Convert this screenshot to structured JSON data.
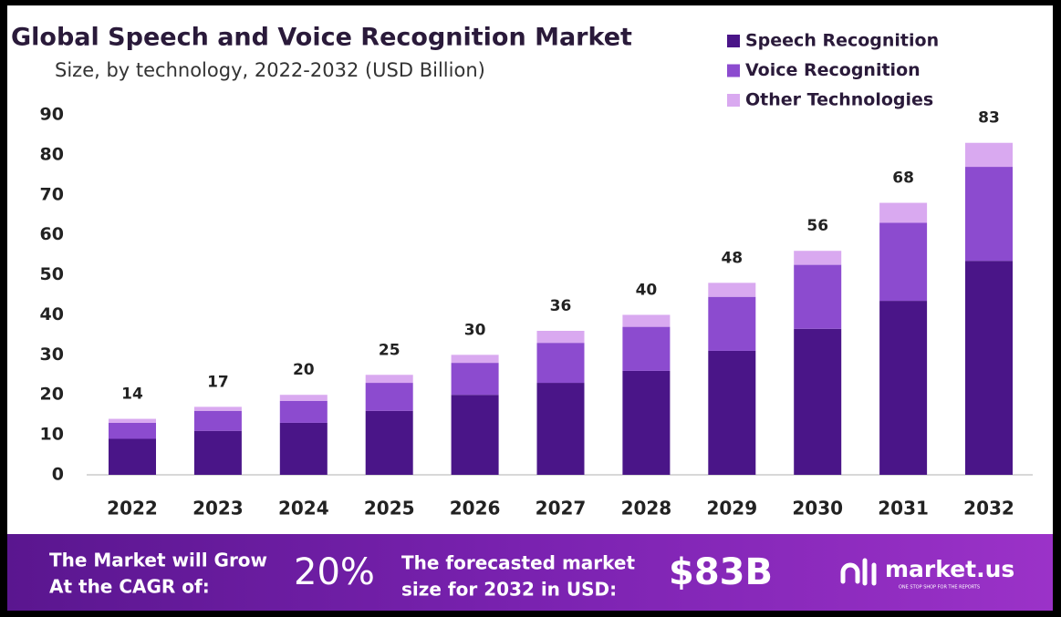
{
  "chart_data": {
    "type": "stacked_bar",
    "title": "Global Speech and Voice Recognition Market",
    "subtitle": "Size, by technology, 2022-2032 (USD Billion)",
    "categories": [
      "2022",
      "2023",
      "2024",
      "2025",
      "2026",
      "2027",
      "2028",
      "2029",
      "2030",
      "2031",
      "2032"
    ],
    "series": [
      {
        "name": "Speech Recognition",
        "color": "#4a1588",
        "values": [
          9,
          11,
          13,
          16,
          20,
          23,
          26,
          31,
          36.5,
          43.5,
          53.5
        ]
      },
      {
        "name": "Voice Recognition",
        "color": "#8c4bcf",
        "values": [
          4,
          5,
          5.5,
          7,
          8,
          10,
          11,
          13.5,
          16,
          19.5,
          23.5
        ]
      },
      {
        "name": "Other Technologies",
        "color": "#d9a9f0",
        "values": [
          1,
          1,
          1.5,
          2,
          2,
          3,
          3,
          3.5,
          3.5,
          5,
          6
        ]
      }
    ],
    "totals": [
      14,
      17,
      20,
      25,
      30,
      36,
      40,
      48,
      56,
      68,
      83
    ],
    "ylim": [
      0,
      90
    ],
    "yticks": [
      0,
      10,
      20,
      30,
      40,
      50,
      60,
      70,
      80,
      90
    ],
    "grid": false,
    "legend": "top-right"
  },
  "footer": {
    "cagr_text": [
      "The Market will Grow",
      "At the CAGR of:"
    ],
    "cagr": "20%",
    "forecast_text": [
      "The forecasted market",
      "size for 2032 in USD:"
    ],
    "forecast": "$83B",
    "brand": "market.us",
    "tagline": "ONE STOP SHOP FOR THE REPORTS"
  }
}
